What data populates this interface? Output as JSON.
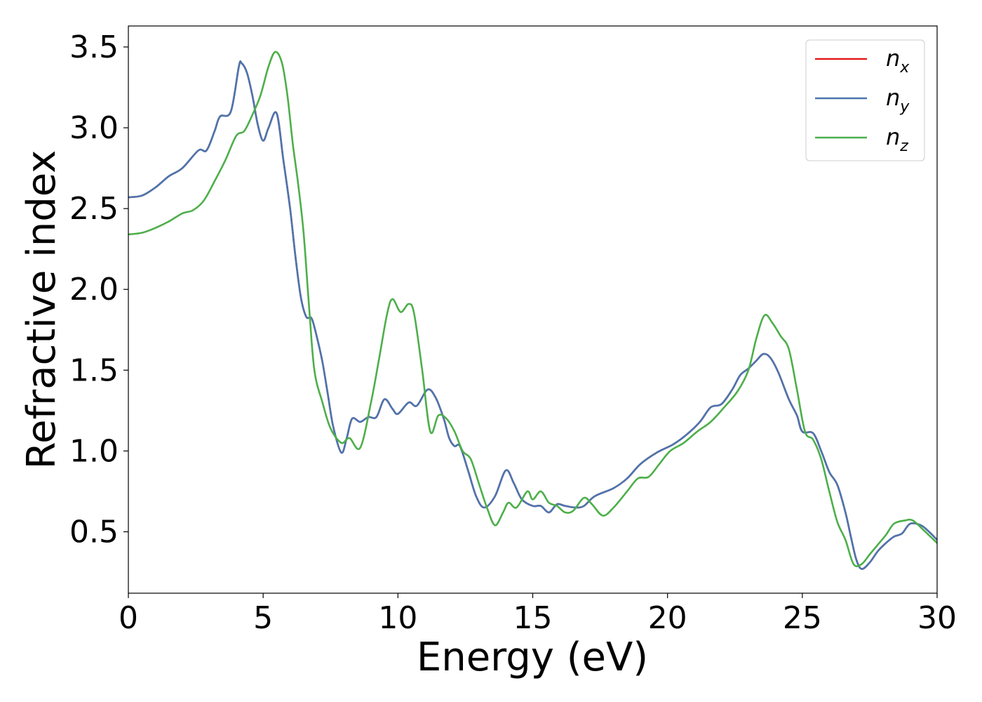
{
  "chart_data": {
    "type": "line",
    "xlabel": "Energy (eV)",
    "ylabel": "Refractive index",
    "xlim": [
      0,
      30
    ],
    "ylim": [
      0.12,
      3.63
    ],
    "x_ticks": [
      0,
      5,
      10,
      15,
      20,
      25,
      30
    ],
    "x_tick_labels": [
      "0",
      "5",
      "10",
      "15",
      "20",
      "25",
      "30"
    ],
    "y_ticks": [
      0.5,
      1.0,
      1.5,
      2.0,
      2.5,
      3.0,
      3.5
    ],
    "y_tick_labels": [
      "0.5",
      "1.0",
      "1.5",
      "2.0",
      "2.5",
      "3.0",
      "3.5"
    ],
    "grid": false,
    "legend_position": "top-right",
    "series": [
      {
        "name": "n_x",
        "legend_base": "n",
        "legend_sub": "x",
        "color": "#e41a1c",
        "points": [
          [
            0,
            2.57
          ],
          [
            0.5,
            2.58
          ],
          [
            1,
            2.63
          ],
          [
            1.5,
            2.7
          ],
          [
            2,
            2.75
          ],
          [
            2.6,
            2.86
          ],
          [
            2.9,
            2.86
          ],
          [
            3.2,
            2.98
          ],
          [
            3.4,
            3.07
          ],
          [
            3.8,
            3.1
          ],
          [
            4.1,
            3.38
          ],
          [
            4.2,
            3.4
          ],
          [
            4.4,
            3.34
          ],
          [
            4.6,
            3.2
          ],
          [
            4.8,
            3.02
          ],
          [
            5.0,
            2.92
          ],
          [
            5.2,
            3.0
          ],
          [
            5.5,
            3.09
          ],
          [
            5.75,
            2.8
          ],
          [
            6.0,
            2.5
          ],
          [
            6.2,
            2.2
          ],
          [
            6.4,
            1.95
          ],
          [
            6.6,
            1.83
          ],
          [
            6.8,
            1.82
          ],
          [
            7.0,
            1.7
          ],
          [
            7.2,
            1.55
          ],
          [
            7.4,
            1.35
          ],
          [
            7.6,
            1.15
          ],
          [
            7.9,
            0.99
          ],
          [
            8.1,
            1.08
          ],
          [
            8.3,
            1.2
          ],
          [
            8.6,
            1.18
          ],
          [
            8.9,
            1.21
          ],
          [
            9.2,
            1.21
          ],
          [
            9.5,
            1.32
          ],
          [
            9.8,
            1.26
          ],
          [
            10.0,
            1.23
          ],
          [
            10.4,
            1.3
          ],
          [
            10.7,
            1.28
          ],
          [
            11.1,
            1.38
          ],
          [
            11.4,
            1.33
          ],
          [
            11.7,
            1.2
          ],
          [
            11.9,
            1.08
          ],
          [
            12.1,
            1.03
          ],
          [
            12.3,
            1.03
          ],
          [
            12.6,
            0.88
          ],
          [
            12.9,
            0.72
          ],
          [
            13.2,
            0.65
          ],
          [
            13.6,
            0.72
          ],
          [
            14.0,
            0.88
          ],
          [
            14.3,
            0.8
          ],
          [
            14.6,
            0.7
          ],
          [
            15.0,
            0.66
          ],
          [
            15.3,
            0.66
          ],
          [
            15.6,
            0.62
          ],
          [
            15.9,
            0.67
          ],
          [
            16.2,
            0.66
          ],
          [
            16.6,
            0.65
          ],
          [
            16.9,
            0.66
          ],
          [
            17.3,
            0.72
          ],
          [
            18.0,
            0.77
          ],
          [
            18.5,
            0.83
          ],
          [
            19.0,
            0.92
          ],
          [
            19.6,
            0.99
          ],
          [
            20.2,
            1.04
          ],
          [
            20.7,
            1.1
          ],
          [
            21.2,
            1.18
          ],
          [
            21.6,
            1.27
          ],
          [
            22.0,
            1.29
          ],
          [
            22.4,
            1.38
          ],
          [
            22.7,
            1.47
          ],
          [
            23.0,
            1.51
          ],
          [
            23.3,
            1.56
          ],
          [
            23.55,
            1.6
          ],
          [
            23.8,
            1.58
          ],
          [
            24.1,
            1.49
          ],
          [
            24.5,
            1.32
          ],
          [
            24.8,
            1.22
          ],
          [
            25.0,
            1.12
          ],
          [
            25.4,
            1.11
          ],
          [
            25.7,
            1.0
          ],
          [
            26.0,
            0.87
          ],
          [
            26.3,
            0.79
          ],
          [
            26.6,
            0.62
          ],
          [
            26.8,
            0.47
          ],
          [
            27.0,
            0.33
          ],
          [
            27.2,
            0.27
          ],
          [
            27.5,
            0.31
          ],
          [
            27.8,
            0.38
          ],
          [
            28.1,
            0.43
          ],
          [
            28.4,
            0.47
          ],
          [
            28.7,
            0.49
          ],
          [
            29.0,
            0.55
          ],
          [
            29.4,
            0.54
          ],
          [
            29.7,
            0.5
          ],
          [
            30.0,
            0.45
          ]
        ]
      },
      {
        "name": "n_y",
        "legend_base": "n",
        "legend_sub": "y",
        "color": "#4a76b0",
        "points": [
          [
            0,
            2.57
          ],
          [
            0.5,
            2.58
          ],
          [
            1,
            2.63
          ],
          [
            1.5,
            2.7
          ],
          [
            2,
            2.75
          ],
          [
            2.6,
            2.86
          ],
          [
            2.9,
            2.86
          ],
          [
            3.2,
            2.98
          ],
          [
            3.4,
            3.07
          ],
          [
            3.8,
            3.1
          ],
          [
            4.1,
            3.38
          ],
          [
            4.2,
            3.4
          ],
          [
            4.4,
            3.34
          ],
          [
            4.6,
            3.2
          ],
          [
            4.8,
            3.02
          ],
          [
            5.0,
            2.92
          ],
          [
            5.2,
            3.0
          ],
          [
            5.5,
            3.09
          ],
          [
            5.75,
            2.8
          ],
          [
            6.0,
            2.5
          ],
          [
            6.2,
            2.2
          ],
          [
            6.4,
            1.95
          ],
          [
            6.6,
            1.83
          ],
          [
            6.8,
            1.82
          ],
          [
            7.0,
            1.7
          ],
          [
            7.2,
            1.55
          ],
          [
            7.4,
            1.35
          ],
          [
            7.6,
            1.15
          ],
          [
            7.9,
            0.99
          ],
          [
            8.1,
            1.08
          ],
          [
            8.3,
            1.2
          ],
          [
            8.6,
            1.18
          ],
          [
            8.9,
            1.21
          ],
          [
            9.2,
            1.21
          ],
          [
            9.5,
            1.32
          ],
          [
            9.8,
            1.26
          ],
          [
            10.0,
            1.23
          ],
          [
            10.4,
            1.3
          ],
          [
            10.7,
            1.28
          ],
          [
            11.1,
            1.38
          ],
          [
            11.4,
            1.33
          ],
          [
            11.7,
            1.2
          ],
          [
            11.9,
            1.08
          ],
          [
            12.1,
            1.03
          ],
          [
            12.3,
            1.03
          ],
          [
            12.6,
            0.88
          ],
          [
            12.9,
            0.72
          ],
          [
            13.2,
            0.65
          ],
          [
            13.6,
            0.72
          ],
          [
            14.0,
            0.88
          ],
          [
            14.3,
            0.8
          ],
          [
            14.6,
            0.7
          ],
          [
            15.0,
            0.66
          ],
          [
            15.3,
            0.66
          ],
          [
            15.6,
            0.62
          ],
          [
            15.9,
            0.67
          ],
          [
            16.2,
            0.66
          ],
          [
            16.6,
            0.65
          ],
          [
            16.9,
            0.66
          ],
          [
            17.3,
            0.72
          ],
          [
            18.0,
            0.77
          ],
          [
            18.5,
            0.83
          ],
          [
            19.0,
            0.92
          ],
          [
            19.6,
            0.99
          ],
          [
            20.2,
            1.04
          ],
          [
            20.7,
            1.1
          ],
          [
            21.2,
            1.18
          ],
          [
            21.6,
            1.27
          ],
          [
            22.0,
            1.29
          ],
          [
            22.4,
            1.38
          ],
          [
            22.7,
            1.47
          ],
          [
            23.0,
            1.51
          ],
          [
            23.3,
            1.56
          ],
          [
            23.55,
            1.6
          ],
          [
            23.8,
            1.58
          ],
          [
            24.1,
            1.49
          ],
          [
            24.5,
            1.32
          ],
          [
            24.8,
            1.22
          ],
          [
            25.0,
            1.12
          ],
          [
            25.4,
            1.11
          ],
          [
            25.7,
            1.0
          ],
          [
            26.0,
            0.87
          ],
          [
            26.3,
            0.79
          ],
          [
            26.6,
            0.62
          ],
          [
            26.8,
            0.47
          ],
          [
            27.0,
            0.33
          ],
          [
            27.2,
            0.27
          ],
          [
            27.5,
            0.31
          ],
          [
            27.8,
            0.38
          ],
          [
            28.1,
            0.43
          ],
          [
            28.4,
            0.47
          ],
          [
            28.7,
            0.49
          ],
          [
            29.0,
            0.55
          ],
          [
            29.4,
            0.54
          ],
          [
            29.7,
            0.5
          ],
          [
            30.0,
            0.45
          ]
        ]
      },
      {
        "name": "n_z",
        "legend_base": "n",
        "legend_sub": "z",
        "color": "#4daf4a",
        "points": [
          [
            0,
            2.34
          ],
          [
            0.5,
            2.35
          ],
          [
            1,
            2.38
          ],
          [
            1.5,
            2.42
          ],
          [
            2.0,
            2.47
          ],
          [
            2.4,
            2.49
          ],
          [
            2.8,
            2.55
          ],
          [
            3.2,
            2.67
          ],
          [
            3.6,
            2.8
          ],
          [
            4.0,
            2.95
          ],
          [
            4.3,
            2.98
          ],
          [
            4.6,
            3.08
          ],
          [
            4.9,
            3.2
          ],
          [
            5.2,
            3.38
          ],
          [
            5.45,
            3.47
          ],
          [
            5.7,
            3.4
          ],
          [
            5.9,
            3.2
          ],
          [
            6.1,
            2.9
          ],
          [
            6.3,
            2.65
          ],
          [
            6.5,
            2.35
          ],
          [
            6.7,
            1.9
          ],
          [
            6.9,
            1.5
          ],
          [
            7.2,
            1.3
          ],
          [
            7.5,
            1.14
          ],
          [
            7.9,
            1.05
          ],
          [
            8.2,
            1.08
          ],
          [
            8.6,
            1.02
          ],
          [
            9.0,
            1.3
          ],
          [
            9.3,
            1.57
          ],
          [
            9.6,
            1.85
          ],
          [
            9.8,
            1.94
          ],
          [
            10.1,
            1.86
          ],
          [
            10.4,
            1.91
          ],
          [
            10.6,
            1.85
          ],
          [
            10.9,
            1.5
          ],
          [
            11.2,
            1.12
          ],
          [
            11.5,
            1.22
          ],
          [
            11.8,
            1.2
          ],
          [
            12.1,
            1.12
          ],
          [
            12.4,
            1.0
          ],
          [
            12.7,
            0.95
          ],
          [
            13.0,
            0.8
          ],
          [
            13.3,
            0.65
          ],
          [
            13.6,
            0.54
          ],
          [
            13.9,
            0.62
          ],
          [
            14.1,
            0.68
          ],
          [
            14.4,
            0.65
          ],
          [
            14.8,
            0.75
          ],
          [
            15.0,
            0.7
          ],
          [
            15.3,
            0.75
          ],
          [
            15.6,
            0.68
          ],
          [
            15.9,
            0.66
          ],
          [
            16.2,
            0.62
          ],
          [
            16.5,
            0.63
          ],
          [
            16.9,
            0.71
          ],
          [
            17.2,
            0.67
          ],
          [
            17.6,
            0.6
          ],
          [
            18.0,
            0.65
          ],
          [
            18.5,
            0.75
          ],
          [
            18.9,
            0.83
          ],
          [
            19.3,
            0.84
          ],
          [
            19.7,
            0.92
          ],
          [
            20.1,
            1.0
          ],
          [
            20.6,
            1.05
          ],
          [
            21.1,
            1.12
          ],
          [
            21.6,
            1.18
          ],
          [
            22.1,
            1.27
          ],
          [
            22.6,
            1.37
          ],
          [
            23.0,
            1.5
          ],
          [
            23.3,
            1.7
          ],
          [
            23.6,
            1.84
          ],
          [
            23.9,
            1.79
          ],
          [
            24.2,
            1.71
          ],
          [
            24.5,
            1.63
          ],
          [
            24.8,
            1.38
          ],
          [
            25.1,
            1.12
          ],
          [
            25.4,
            1.07
          ],
          [
            25.7,
            0.95
          ],
          [
            26.0,
            0.75
          ],
          [
            26.3,
            0.56
          ],
          [
            26.6,
            0.45
          ],
          [
            26.9,
            0.3
          ],
          [
            27.2,
            0.3
          ],
          [
            27.5,
            0.36
          ],
          [
            27.8,
            0.42
          ],
          [
            28.1,
            0.48
          ],
          [
            28.4,
            0.55
          ],
          [
            28.8,
            0.57
          ],
          [
            29.1,
            0.57
          ],
          [
            29.5,
            0.51
          ],
          [
            30.0,
            0.43
          ]
        ]
      }
    ]
  }
}
